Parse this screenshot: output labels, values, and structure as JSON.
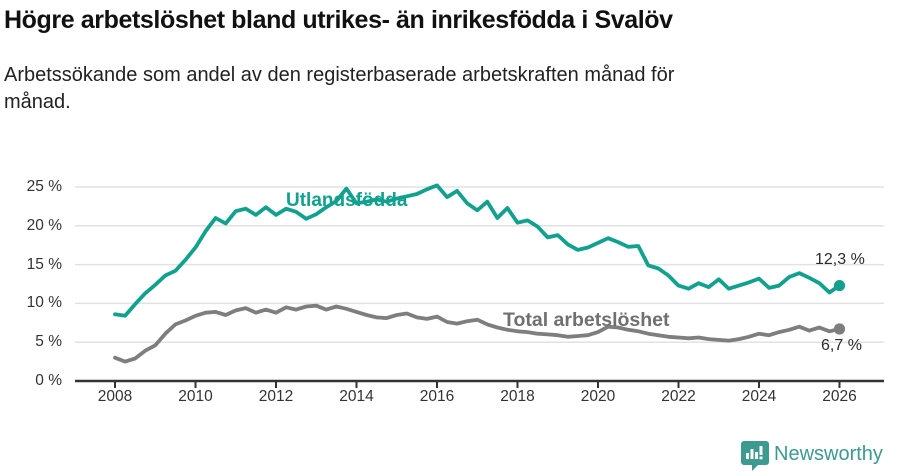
{
  "header": {
    "title": "Högre arbetslöshet bland utrikes- än inrikesfödda i Svalöv",
    "subtitle_line1": "Arbetssökande som andel av den registerbaserade arbetskraften månad för",
    "subtitle_line2": "månad."
  },
  "chart_data": {
    "type": "line",
    "title": "Högre arbetslöshet bland utrikes- än inrikesfödda i Svalöv",
    "subtitle": "Arbetssökande som andel av den registerbaserade arbetskraften månad för månad.",
    "x_start_year": 2008,
    "x_step_years": 0.25,
    "xlim": [
      2007.5,
      2026.6
    ],
    "ylim": [
      0,
      26
    ],
    "grid": true,
    "y_ticks": [
      {
        "label": "25 %",
        "value": 25
      },
      {
        "label": "20 %",
        "value": 20
      },
      {
        "label": "15 %",
        "value": 15
      },
      {
        "label": "10 %",
        "value": 10
      },
      {
        "label": "5 %",
        "value": 5
      },
      {
        "label": "0 %",
        "value": 0
      }
    ],
    "x_ticks": [
      {
        "label": "2008",
        "value": 2008
      },
      {
        "label": "2010",
        "value": 2010
      },
      {
        "label": "2012",
        "value": 2012
      },
      {
        "label": "2014",
        "value": 2014
      },
      {
        "label": "2016",
        "value": 2016
      },
      {
        "label": "2018",
        "value": 2018
      },
      {
        "label": "2020",
        "value": 2020
      },
      {
        "label": "2022",
        "value": 2022
      },
      {
        "label": "2024",
        "value": 2024
      },
      {
        "label": "2026",
        "value": 2026
      }
    ],
    "series": [
      {
        "name": "Utlandsfödda",
        "color": "#12A08F",
        "end_label": "12,3 %",
        "end_value": 12.3,
        "values": [
          8.6,
          8.4,
          9.9,
          11.3,
          12.4,
          13.6,
          14.2,
          15.6,
          17.2,
          19.3,
          21.0,
          20.3,
          21.9,
          22.2,
          21.4,
          22.4,
          21.4,
          22.2,
          21.8,
          20.9,
          21.5,
          22.4,
          23.2,
          24.8,
          22.9,
          23.1,
          23.4,
          23.1,
          23.5,
          23.8,
          24.1,
          24.7,
          25.2,
          23.7,
          24.5,
          22.9,
          22.0,
          23.1,
          21.0,
          22.3,
          20.4,
          20.7,
          19.9,
          18.5,
          18.8,
          17.6,
          16.9,
          17.2,
          17.8,
          18.4,
          17.9,
          17.3,
          17.4,
          14.9,
          14.5,
          13.6,
          12.3,
          11.9,
          12.6,
          12.1,
          13.1,
          11.9,
          12.3,
          12.7,
          13.2,
          12.0,
          12.3,
          13.4,
          13.9,
          13.3,
          12.6,
          11.4,
          12.3
        ]
      },
      {
        "name": "Total arbetslöshet",
        "color": "#7E7E7E",
        "end_label": "6,7 %",
        "end_value": 6.7,
        "values": [
          3.0,
          2.5,
          2.9,
          3.9,
          4.6,
          6.1,
          7.3,
          7.8,
          8.4,
          8.8,
          8.9,
          8.5,
          9.1,
          9.4,
          8.8,
          9.2,
          8.8,
          9.5,
          9.2,
          9.6,
          9.7,
          9.2,
          9.6,
          9.3,
          8.9,
          8.5,
          8.2,
          8.1,
          8.5,
          8.7,
          8.2,
          8.0,
          8.3,
          7.6,
          7.4,
          7.7,
          7.9,
          7.3,
          6.9,
          6.6,
          6.4,
          6.3,
          6.1,
          6.0,
          5.9,
          5.7,
          5.8,
          5.9,
          6.3,
          7.0,
          6.9,
          6.6,
          6.4,
          6.1,
          5.9,
          5.7,
          5.6,
          5.5,
          5.6,
          5.4,
          5.3,
          5.2,
          5.4,
          5.7,
          6.1,
          5.9,
          6.3,
          6.6,
          7.0,
          6.5,
          6.9,
          6.4,
          6.7
        ]
      }
    ],
    "colors": {
      "grid": "#E2E2E2",
      "axis": "#333333",
      "tick_text": "#333333",
      "annotation_text": "#2b2b2b"
    },
    "legend_position": "inline-labels"
  },
  "footer": {
    "brand": "Newsworthy",
    "brand_color": "#3D9A8E",
    "icon": "newsworthy-speech-bubble-barchart-icon"
  }
}
